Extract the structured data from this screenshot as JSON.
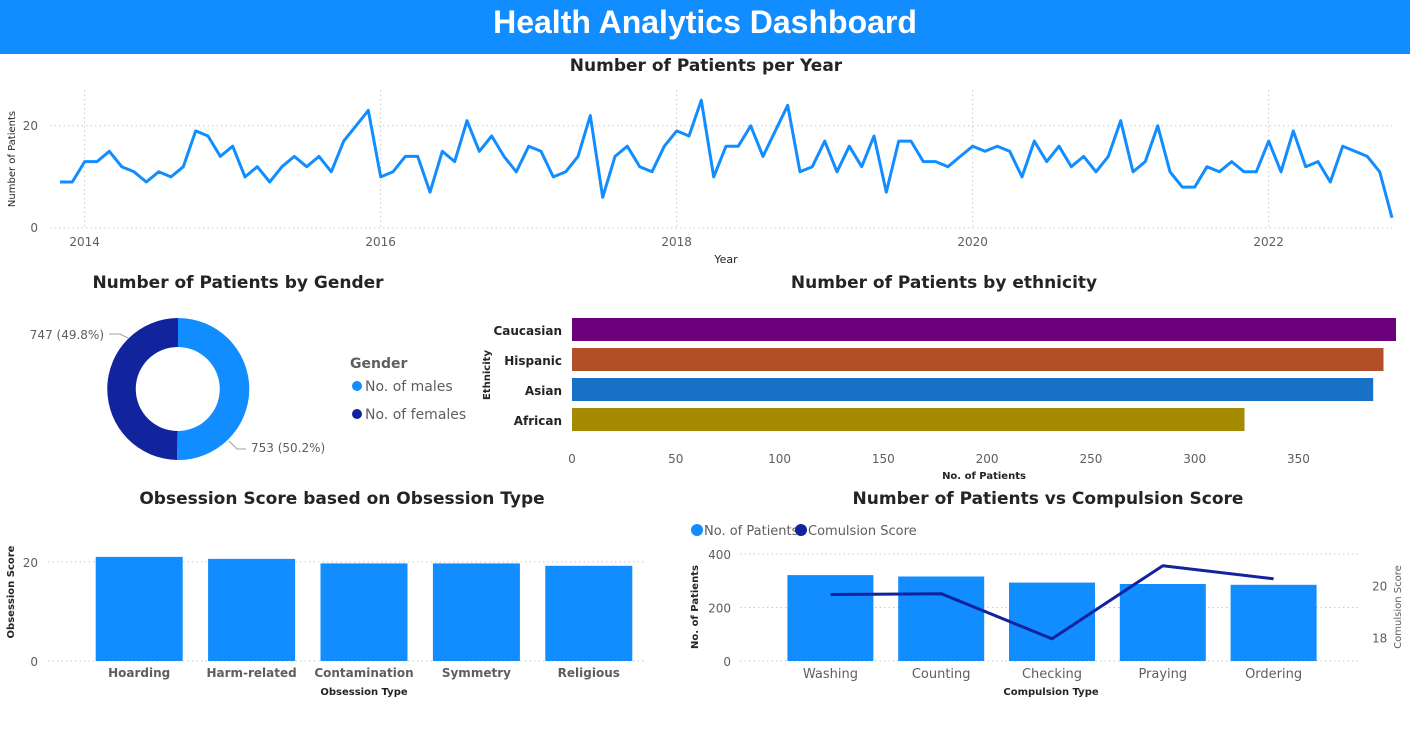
{
  "header": {
    "title": "Health Analytics Dashboard"
  },
  "colors": {
    "header_bg": "#118DFF",
    "primary": "#118DFF",
    "dark_blue": "#12239E",
    "caucasian": "#6B007B",
    "hispanic": "#B14F29",
    "asian": "#1871C4",
    "african": "#A38A00"
  },
  "chart_data": [
    {
      "id": "patients_per_year",
      "type": "line",
      "title": "Number of Patients per Year",
      "xlabel": "Year",
      "ylabel": "Number of Patients",
      "x_ticks": [
        "2014",
        "2016",
        "2018",
        "2020",
        "2022"
      ],
      "y_ticks": [
        "0",
        "20"
      ],
      "ylim": [
        0,
        27
      ],
      "grid": true,
      "x_start": "2013-11",
      "x_step": "1 month",
      "values": [
        9,
        9,
        13,
        13,
        15,
        12,
        11,
        9,
        11,
        10,
        12,
        19,
        18,
        14,
        16,
        10,
        12,
        9,
        12,
        14,
        12,
        14,
        11,
        17,
        20,
        23,
        10,
        11,
        14,
        14,
        7,
        15,
        13,
        21,
        15,
        18,
        14,
        11,
        16,
        15,
        10,
        11,
        14,
        22,
        6,
        14,
        16,
        12,
        11,
        16,
        19,
        18,
        25,
        10,
        16,
        16,
        20,
        14,
        19,
        24,
        11,
        12,
        17,
        11,
        16,
        12,
        18,
        7,
        17,
        17,
        13,
        13,
        12,
        14,
        16,
        15,
        16,
        15,
        10,
        17,
        13,
        16,
        12,
        14,
        11,
        14,
        21,
        11,
        13,
        20,
        11,
        8,
        8,
        12,
        11,
        13,
        11,
        11,
        17,
        11,
        19,
        12,
        13,
        9,
        16,
        15,
        14,
        11,
        2
      ]
    },
    {
      "id": "patients_by_gender",
      "type": "pie",
      "title": "Number of Patients by Gender",
      "legend_title": "Gender",
      "slices": [
        {
          "name": "No. of males",
          "value": 753,
          "label": "753 (50.2%)"
        },
        {
          "name": "No. of females",
          "value": 747,
          "label": "747 (49.8%)"
        }
      ]
    },
    {
      "id": "patients_by_ethnicity",
      "type": "bar",
      "orientation": "horizontal",
      "title": "Number of Patients by ethnicity",
      "xlabel": "No. of Patients",
      "ylabel": "Ethnicity",
      "categories": [
        "Caucasian",
        "Hispanic",
        "Asian",
        "African"
      ],
      "values": [
        397,
        391,
        386,
        324
      ],
      "xlim": [
        0,
        397
      ],
      "x_ticks": [
        "0",
        "50",
        "100",
        "150",
        "200",
        "250",
        "300",
        "350"
      ]
    },
    {
      "id": "obsession_score",
      "type": "bar",
      "title": "Obsession Score based on Obsession Type",
      "xlabel": "Obsession Type",
      "ylabel": "Obsession Score",
      "categories": [
        "Hoarding",
        "Harm-related",
        "Contamination",
        "Symmetry",
        "Religious"
      ],
      "values": [
        21.0,
        20.6,
        19.7,
        19.7,
        19.2
      ],
      "ylim": [
        0,
        23
      ],
      "y_ticks": [
        "0",
        "20"
      ]
    },
    {
      "id": "patients_vs_compulsion",
      "type": "bar",
      "title": "Number of Patients vs Compulsion Score",
      "xlabel": "Compulsion Type",
      "ylabel": "No. of Patients",
      "y2label": "Comulsion Score",
      "categories": [
        "Washing",
        "Counting",
        "Checking",
        "Praying",
        "Ordering"
      ],
      "series": [
        {
          "name": "No. of Patients",
          "type": "bar",
          "values": [
            321,
            316,
            293,
            288,
            285
          ]
        },
        {
          "name": "Comulsion Score",
          "type": "line",
          "values": [
            19.65,
            19.68,
            17.95,
            20.75,
            20.25
          ]
        }
      ],
      "ylim": [
        0,
        400
      ],
      "y_ticks": [
        "0",
        "200",
        "400"
      ],
      "y2lim": [
        17.1,
        21.2
      ],
      "y2_ticks": [
        "18",
        "20"
      ]
    }
  ]
}
